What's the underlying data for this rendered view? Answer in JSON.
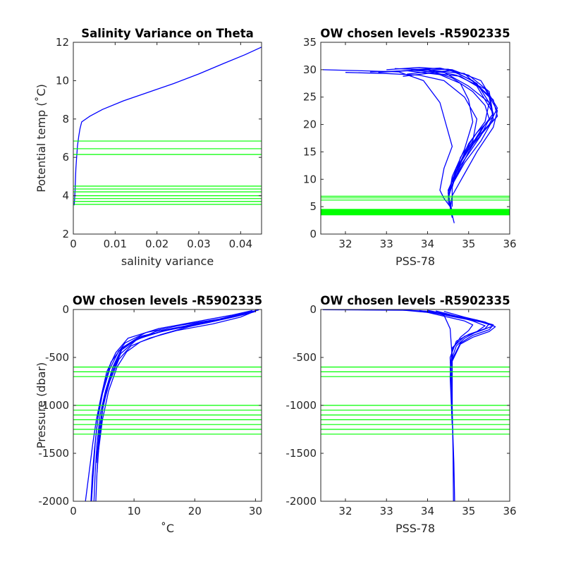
{
  "figure": {
    "background": "#ffffff"
  },
  "chart_data": [
    {
      "type": "line",
      "title": "Salinity Variance on Theta",
      "xlabel": "salinity variance",
      "ylabel": "Potential temp (˚C)",
      "xlim": [
        0,
        0.045
      ],
      "ylim": [
        2,
        12
      ],
      "xticks": [
        0,
        0.01,
        0.02,
        0.03,
        0.04
      ],
      "xtick_labels": [
        "0",
        "0.01",
        "0.02",
        "0.03",
        "0.04"
      ],
      "yticks": [
        2,
        4,
        6,
        8,
        10,
        12
      ],
      "ytick_labels": [
        "2",
        "4",
        "6",
        "8",
        "10",
        "12"
      ],
      "series": [
        {
          "color": "#0000ff",
          "x": [
            0.0002,
            0.0003,
            0.0004,
            0.0005,
            0.0006,
            0.0008,
            0.001,
            0.0013,
            0.0016,
            0.002,
            0.004,
            0.007,
            0.012,
            0.018,
            0.024,
            0.03,
            0.036,
            0.041,
            0.045
          ],
          "y": [
            3.5,
            3.8,
            4.2,
            4.8,
            5.4,
            6.0,
            6.6,
            7.1,
            7.5,
            7.85,
            8.15,
            8.5,
            8.95,
            9.4,
            9.85,
            10.35,
            10.9,
            11.35,
            11.75
          ]
        }
      ],
      "hlines": [
        3.55,
        3.7,
        3.85,
        4.0,
        4.2,
        4.35,
        4.5,
        6.15,
        6.45,
        6.85
      ],
      "hline_color": "#00ff00"
    },
    {
      "type": "line",
      "title": "OW chosen levels -R5902335",
      "xlabel": "PSS-78",
      "ylabel": "",
      "xlim": [
        31.4,
        36
      ],
      "ylim": [
        0,
        35
      ],
      "xticks": [
        32,
        33,
        34,
        35,
        36
      ],
      "xtick_labels": [
        "32",
        "33",
        "34",
        "35",
        "36"
      ],
      "yticks": [
        0,
        5,
        10,
        15,
        20,
        25,
        30,
        35
      ],
      "ytick_labels": [
        "0",
        "5",
        "10",
        "15",
        "20",
        "25",
        "30",
        "35"
      ],
      "series": [
        {
          "color": "#0000ff",
          "x": [
            31.45,
            32.4,
            33.3,
            33.9,
            34.3,
            34.6,
            34.4,
            34.3,
            34.4,
            34.55,
            34.6,
            34.65
          ],
          "y": [
            30.0,
            29.8,
            29.6,
            28.0,
            24.0,
            16.0,
            12.0,
            8.0,
            6.5,
            5.0,
            3.5,
            2.0
          ]
        },
        {
          "color": "#0000ff",
          "x": [
            32.8,
            33.6,
            34.4,
            35.0,
            35.5,
            35.6,
            35.3,
            34.8,
            34.5,
            34.55,
            34.6
          ],
          "y": [
            29.5,
            29.9,
            29.5,
            27.0,
            24.0,
            22.0,
            19.0,
            13.0,
            8.0,
            5.0,
            3.0
          ]
        },
        {
          "color": "#0000ff",
          "x": [
            33.0,
            33.8,
            34.6,
            35.3,
            35.7,
            35.5,
            35.0,
            34.6,
            34.5,
            34.6
          ],
          "y": [
            30.0,
            30.4,
            30.0,
            28.0,
            23.0,
            20.0,
            16.0,
            10.0,
            6.0,
            4.0
          ]
        },
        {
          "color": "#0000ff",
          "x": [
            33.3,
            34.0,
            34.7,
            35.4,
            35.7,
            35.6,
            35.2,
            34.9,
            34.6,
            34.55
          ],
          "y": [
            29.7,
            30.1,
            29.0,
            26.5,
            22.5,
            19.5,
            15.0,
            11.0,
            7.0,
            4.5
          ]
        },
        {
          "color": "#0000ff",
          "x": [
            33.5,
            34.2,
            34.9,
            35.5,
            35.6,
            35.3,
            34.9,
            34.6,
            34.6
          ],
          "y": [
            29.2,
            29.8,
            29.3,
            25.0,
            21.0,
            17.0,
            13.0,
            9.0,
            5.0
          ]
        },
        {
          "color": "#0000ff",
          "x": [
            32.0,
            33.0,
            33.8,
            34.4,
            34.9,
            35.2,
            35.1,
            34.7,
            34.5,
            34.6
          ],
          "y": [
            29.5,
            29.3,
            29.0,
            28.0,
            25.0,
            21.0,
            17.0,
            12.0,
            7.5,
            4.0
          ]
        },
        {
          "color": "#0000ff",
          "x": [
            33.2,
            34.0,
            34.6,
            35.1,
            35.4,
            35.5,
            35.3,
            34.8,
            34.5
          ],
          "y": [
            30.2,
            30.0,
            28.5,
            26.0,
            23.5,
            21.0,
            18.0,
            12.5,
            7.0
          ]
        },
        {
          "color": "#0000ff",
          "x": [
            33.6,
            34.3,
            35.0,
            35.5,
            35.6,
            35.2,
            34.8,
            34.6
          ],
          "y": [
            30.0,
            30.3,
            29.0,
            26.0,
            21.5,
            18.5,
            14.0,
            8.5
          ]
        },
        {
          "color": "#0000ff",
          "x": [
            34.0,
            34.6,
            35.2,
            35.5,
            35.4,
            35.0,
            34.7,
            34.5
          ],
          "y": [
            29.4,
            29.9,
            27.5,
            24.0,
            20.5,
            16.5,
            11.5,
            6.5
          ]
        },
        {
          "color": "#0000ff",
          "x": [
            33.4,
            34.1,
            34.8,
            35.2,
            35.4,
            35.6,
            35.4,
            35.0,
            34.6
          ],
          "y": [
            28.8,
            29.4,
            28.8,
            27.0,
            24.5,
            22.0,
            20.0,
            15.0,
            9.0
          ]
        },
        {
          "color": "#0000ff",
          "x": [
            33.8,
            34.5,
            35.1,
            35.6,
            35.7,
            35.4,
            34.9,
            34.6
          ],
          "y": [
            29.9,
            30.1,
            28.0,
            24.5,
            21.5,
            19.0,
            14.5,
            9.5
          ]
        },
        {
          "color": "#0000ff",
          "x": [
            32.6,
            33.5,
            34.3,
            34.8,
            35.0,
            35.1,
            34.9,
            34.6,
            34.5
          ],
          "y": [
            29.6,
            29.8,
            29.1,
            27.5,
            24.5,
            20.5,
            15.5,
            10.5,
            6.0
          ]
        }
      ],
      "hlines": [
        3.5,
        3.6,
        3.7,
        3.8,
        3.9,
        4.0,
        4.1,
        4.2,
        4.3,
        4.4,
        4.5,
        6.2,
        6.6,
        6.9
      ],
      "hline_color": "#00ff00"
    },
    {
      "type": "line",
      "title": "OW chosen levels -R5902335",
      "xlabel": "˚C",
      "ylabel": "Pressure (dbar)",
      "xlim": [
        0,
        31
      ],
      "ylim": [
        -2000,
        0
      ],
      "xticks": [
        0,
        10,
        20,
        30
      ],
      "xtick_labels": [
        "0",
        "10",
        "20",
        "30"
      ],
      "yticks": [
        -2000,
        -1500,
        -1000,
        -500,
        0
      ],
      "ytick_labels": [
        "-2000",
        "-1500",
        "-1000",
        "-500",
        "0"
      ],
      "series": [
        {
          "color": "#0000ff",
          "x": [
            29.5,
            26.0,
            20.0,
            14.0,
            9.0,
            7.0,
            5.5,
            4.6,
            3.8,
            3.2,
            2.6,
            2.0
          ],
          "y": [
            -10,
            -60,
            -130,
            -200,
            -300,
            -450,
            -650,
            -900,
            -1150,
            -1400,
            -1700,
            -2000
          ]
        },
        {
          "color": "#0000ff",
          "x": [
            30.5,
            28.0,
            24.0,
            18.0,
            12.0,
            8.5,
            6.2,
            5.0,
            4.1,
            3.6,
            3.3,
            3.0
          ],
          "y": [
            -5,
            -40,
            -100,
            -160,
            -240,
            -350,
            -550,
            -800,
            -1100,
            -1400,
            -1700,
            -2000
          ]
        },
        {
          "color": "#0000ff",
          "x": [
            30.0,
            27.0,
            22.0,
            16.0,
            11.0,
            8.0,
            6.5,
            5.3,
            4.4,
            3.9,
            3.6,
            3.4
          ],
          "y": [
            -20,
            -70,
            -140,
            -210,
            -280,
            -400,
            -600,
            -850,
            -1100,
            -1400,
            -1700,
            -2000
          ]
        },
        {
          "color": "#0000ff",
          "x": [
            29.0,
            25.5,
            19.5,
            13.5,
            10.0,
            8.0,
            6.8,
            5.6,
            4.7,
            4.2,
            3.9,
            3.7
          ],
          "y": [
            -30,
            -90,
            -160,
            -230,
            -330,
            -420,
            -580,
            -820,
            -1080,
            -1380,
            -1700,
            -2000
          ]
        },
        {
          "color": "#0000ff",
          "x": [
            30.2,
            27.5,
            23.0,
            17.0,
            12.5,
            9.5,
            7.5,
            6.0,
            4.9,
            4.3,
            3.9
          ],
          "y": [
            -10,
            -80,
            -150,
            -220,
            -300,
            -380,
            -520,
            -750,
            -1000,
            -1350,
            -1700
          ]
        },
        {
          "color": "#0000ff",
          "x": [
            28.5,
            24.0,
            19.0,
            14.5,
            11.0,
            8.8,
            7.2,
            5.8,
            4.8,
            4.1
          ],
          "y": [
            -40,
            -110,
            -180,
            -260,
            -340,
            -440,
            -600,
            -850,
            -1150,
            -1500
          ]
        },
        {
          "color": "#0000ff",
          "x": [
            30.6,
            29.0,
            25.0,
            20.0,
            15.0,
            10.5,
            7.8,
            6.1,
            5.0,
            4.3,
            3.8
          ],
          "y": [
            -2,
            -30,
            -90,
            -150,
            -220,
            -310,
            -460,
            -700,
            -950,
            -1250,
            -1600
          ]
        },
        {
          "color": "#0000ff",
          "x": [
            29.8,
            26.5,
            21.5,
            15.5,
            10.5,
            7.5,
            6.0,
            4.8,
            4.0,
            3.5,
            3.1,
            2.9
          ],
          "y": [
            -25,
            -75,
            -145,
            -215,
            -300,
            -430,
            -620,
            -880,
            -1150,
            -1450,
            -1750,
            -2000
          ]
        }
      ],
      "hlines": [
        -600,
        -650,
        -700,
        -1000,
        -1050,
        -1100,
        -1150,
        -1200,
        -1250,
        -1300
      ],
      "hline_color": "#00ff00"
    },
    {
      "type": "line",
      "title": "OW chosen levels -R5902335",
      "xlabel": "PSS-78",
      "ylabel": "",
      "xlim": [
        31.4,
        36
      ],
      "ylim": [
        -2000,
        0
      ],
      "xticks": [
        32,
        33,
        34,
        35,
        36
      ],
      "xtick_labels": [
        "32",
        "33",
        "34",
        "35",
        "36"
      ],
      "yticks": [
        -2000,
        -1500,
        -1000,
        -500,
        0
      ],
      "ytick_labels": [
        "-2000",
        "-1500",
        "-1000",
        "-500",
        "0"
      ],
      "series": [
        {
          "color": "#0000ff",
          "x": [
            31.45,
            32.5,
            33.5,
            34.1,
            34.4,
            34.55,
            34.6,
            34.6,
            34.62,
            34.63
          ],
          "y": [
            -2,
            -5,
            -8,
            -20,
            -60,
            -200,
            -500,
            -1000,
            -1500,
            -2000
          ]
        },
        {
          "color": "#0000ff",
          "x": [
            33.5,
            34.2,
            34.8,
            35.3,
            35.6,
            35.3,
            34.9,
            34.6,
            34.55,
            34.6
          ],
          "y": [
            -5,
            -40,
            -90,
            -130,
            -170,
            -220,
            -280,
            -400,
            -700,
            -1200
          ]
        },
        {
          "color": "#0000ff",
          "x": [
            33.8,
            34.4,
            35.0,
            35.5,
            35.4,
            35.0,
            34.7,
            34.55,
            34.58
          ],
          "y": [
            -10,
            -50,
            -100,
            -150,
            -200,
            -260,
            -330,
            -500,
            -900
          ]
        },
        {
          "color": "#0000ff",
          "x": [
            34.0,
            34.6,
            35.2,
            35.6,
            35.5,
            35.1,
            34.8,
            34.6,
            34.6
          ],
          "y": [
            -8,
            -60,
            -110,
            -160,
            -210,
            -270,
            -350,
            -520,
            -1000
          ]
        },
        {
          "color": "#0000ff",
          "x": [
            34.2,
            34.7,
            35.1,
            35.4,
            35.2,
            34.9,
            34.7,
            34.55
          ],
          "y": [
            -15,
            -70,
            -120,
            -170,
            -230,
            -300,
            -380,
            -560
          ]
        },
        {
          "color": "#0000ff",
          "x": [
            33.3,
            34.0,
            34.5,
            34.9,
            35.1,
            35.0,
            34.8,
            34.6,
            34.58
          ],
          "y": [
            -3,
            -30,
            -80,
            -120,
            -160,
            -220,
            -290,
            -420,
            -800
          ]
        },
        {
          "color": "#0000ff",
          "x": [
            34.4,
            34.9,
            35.4,
            35.65,
            35.5,
            35.1,
            34.8,
            34.6
          ],
          "y": [
            -20,
            -80,
            -130,
            -180,
            -230,
            -290,
            -360,
            -540
          ]
        },
        {
          "color": "#0000ff",
          "x": [
            34.55,
            34.6,
            34.64,
            34.66
          ],
          "y": [
            -600,
            -1100,
            -1600,
            -2000
          ]
        }
      ],
      "hlines": [
        -600,
        -650,
        -700,
        -1000,
        -1050,
        -1100,
        -1150,
        -1200,
        -1250,
        -1300
      ],
      "hline_color": "#00ff00"
    }
  ]
}
